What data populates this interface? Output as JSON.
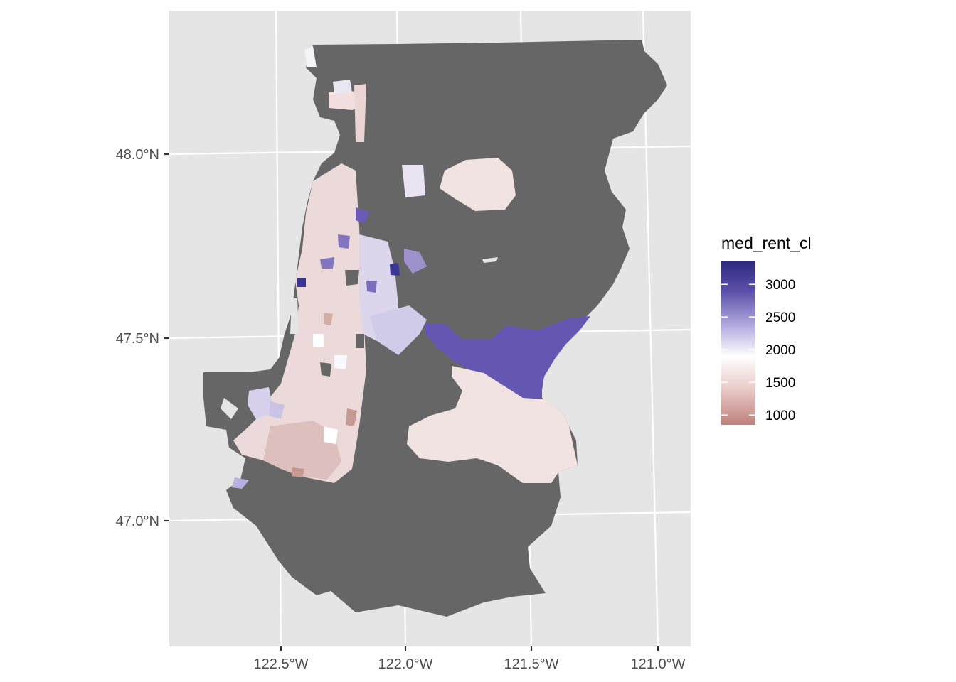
{
  "map": {
    "type": "choropleth",
    "fill_variable": "med_rent_cl",
    "missing_color": "#666666",
    "panel_background": "#e5e5e5",
    "grid_color": "#ffffff",
    "y_axis_ticks": [
      "48.0°N",
      "47.5°N",
      "47.0°N"
    ],
    "x_axis_ticks": [
      "122.5°W",
      "122.0°W",
      "121.5°W",
      "121.0°W"
    ],
    "y_axis_values": [
      48.0,
      47.5,
      47.0
    ],
    "x_axis_values": [
      -122.5,
      -122.0,
      -121.5,
      -121.0
    ]
  },
  "legend": {
    "title": "med_rent_cl",
    "labels": [
      "3000",
      "2500",
      "2000",
      "1500",
      "1000"
    ],
    "values": [
      3000,
      2500,
      2000,
      1500,
      1000
    ],
    "range": [
      850,
      3350
    ],
    "colors": {
      "low": "#c0807a",
      "mid": "#ffffff",
      "high": "#2d2a7f"
    }
  }
}
